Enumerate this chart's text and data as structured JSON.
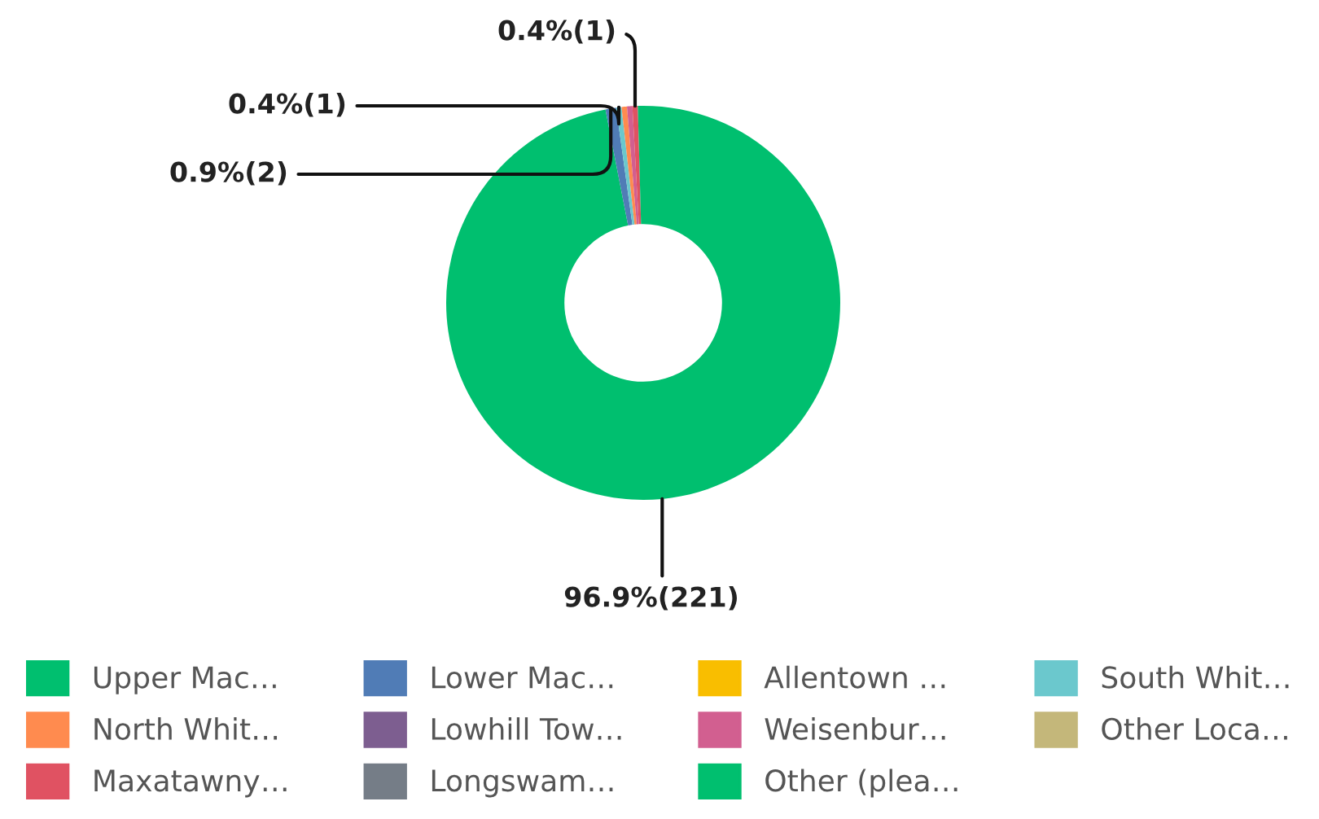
{
  "chart_data": {
    "type": "donut",
    "categories": [
      "Upper Mac…",
      "Lower Mac…",
      "Allentown …",
      "South Whit…",
      "North Whit…",
      "Lowhill Tow…",
      "Weisenbur…",
      "Other Loca…",
      "Maxatawny…",
      "Longswam…",
      "Other (plea…"
    ],
    "values": [
      221,
      2,
      0,
      1,
      1,
      0,
      1,
      0,
      1,
      0,
      1
    ],
    "value_labels": [
      "96.9%(221)",
      "0.9%(2)",
      null,
      "0.4%(1)",
      null,
      null,
      null,
      null,
      "0.4%(1)",
      null,
      null
    ],
    "colors": [
      "#00bf6f",
      "#507cb6",
      "#f9be00",
      "#6bc8cd",
      "#ff8b4f",
      "#7d5e90",
      "#d25f90",
      "#c4b77a",
      "#e05262",
      "#757d87",
      "#00bf6f"
    ],
    "legend": "bottom"
  }
}
